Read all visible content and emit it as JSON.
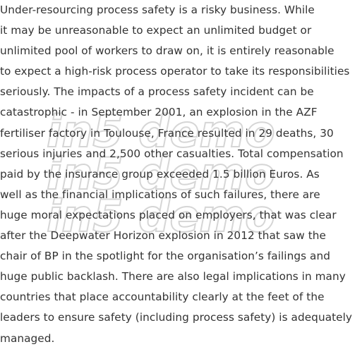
{
  "article": {
    "lines": [
      "Under-resourcing process safety is a risky business. While",
      "it may be unreasonable to expect an unlimited budget or",
      "unlimited pool of workers to draw on, it is entirely reasonable",
      "to expect a high-risk process operator to take its responsibilities",
      "seriously. The impacts of a process safety incident can be",
      "catastrophic - in September 2001, an explosion in the AZF",
      "fertiliser factory in Toulouse, France resulted in 29 deaths, 30",
      "serious injuries and 2,500 other casualties. Total compensation",
      "paid by the insurance group exceeded 1.5 billion Euros. As",
      "well as the financial implications of such failures, there are",
      "huge moral expectations placed on employers, that was clear",
      "after the Deepwater Horizon explosion in 2012 that saw the",
      "chair of BP in the spotlight for the organisation’s failings and",
      "huge public backlash. There are also legal implications in many",
      "countries that place accountability clearly at the feet of the",
      "leaders to ensure safety (including process safety) is adequately",
      "managed."
    ]
  },
  "watermark": {
    "text": "in5 demo",
    "color": "#d6d6d6"
  },
  "colors": {
    "text": "#333333",
    "background": "#ffffff"
  }
}
